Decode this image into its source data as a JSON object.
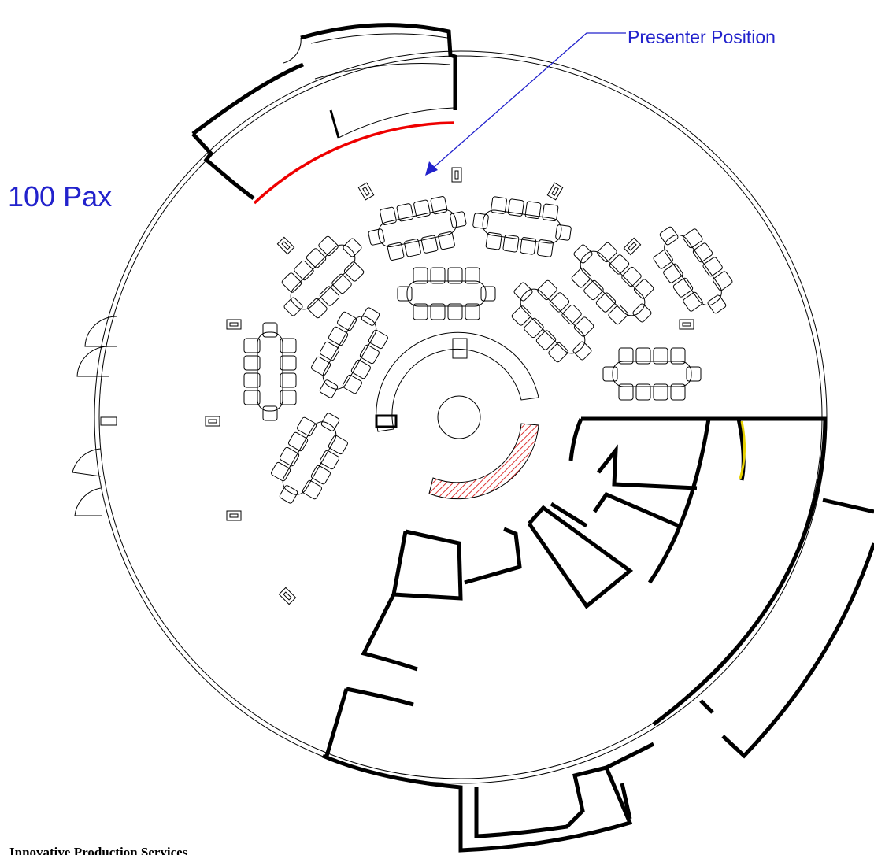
{
  "labels": {
    "presenter": "Presenter Position",
    "capacity": "100 Pax",
    "company": "Innovative Production Services"
  }
}
